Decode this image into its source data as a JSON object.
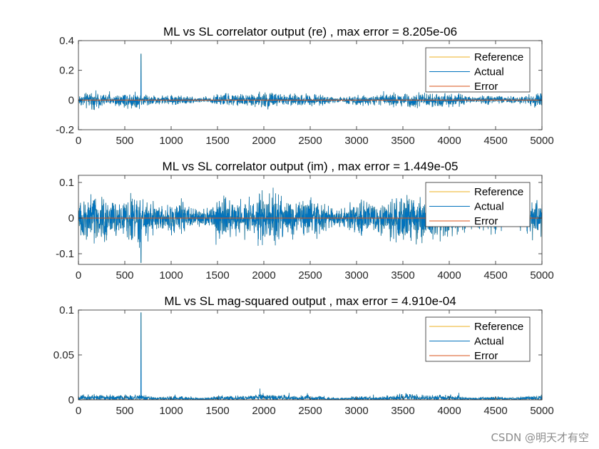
{
  "colors": {
    "reference": "#EDB120",
    "actual": "#0072BD",
    "error": "#D95319",
    "axis": "#262626",
    "background": "#ffffff"
  },
  "watermark": "CSDN @明天才有空",
  "chart_data": [
    {
      "type": "line",
      "title": "ML vs SL correlator output (re) , max error = 8.205e-06",
      "xlabel": "",
      "ylabel": "",
      "xlim": [
        0,
        5000
      ],
      "ylim": [
        -0.2,
        0.4
      ],
      "x_ticks": [
        0,
        500,
        1000,
        1500,
        2000,
        2500,
        3000,
        3500,
        4000,
        4500,
        5000
      ],
      "x_tick_labels": [
        "0",
        "500",
        "1000",
        "1500",
        "2000",
        "2500",
        "3000",
        "3500",
        "4000",
        "4500",
        "5000"
      ],
      "y_ticks": [
        -0.2,
        0,
        0.2,
        0.4
      ],
      "y_tick_labels": [
        "-0.2",
        "0",
        "0.2",
        "0.4"
      ],
      "legend_position": "top-right",
      "series": [
        {
          "name": "Reference",
          "color": "#EDB120",
          "description": "noise sequence, n = 0..5000",
          "noise_amplitude": 0.035,
          "peak": {
            "x": 675,
            "y": 0.31
          }
        },
        {
          "name": "Actual",
          "color": "#0072BD",
          "description": "noise sequence, n = 0..5000",
          "noise_amplitude": 0.035,
          "peak": {
            "x": 675,
            "y": 0.31
          }
        },
        {
          "name": "Error",
          "color": "#D95319",
          "description": "≈ 0 for all samples",
          "value": 0
        }
      ]
    },
    {
      "type": "line",
      "title": "ML vs SL correlator output (im) , max error = 1.449e-05",
      "xlabel": "",
      "ylabel": "",
      "xlim": [
        0,
        5000
      ],
      "ylim": [
        -0.13,
        0.12
      ],
      "x_ticks": [
        0,
        500,
        1000,
        1500,
        2000,
        2500,
        3000,
        3500,
        4000,
        4500,
        5000
      ],
      "x_tick_labels": [
        "0",
        "500",
        "1000",
        "1500",
        "2000",
        "2500",
        "3000",
        "3500",
        "4000",
        "4500",
        "5000"
      ],
      "y_ticks": [
        -0.1,
        0,
        0.1
      ],
      "y_tick_labels": [
        "-0.1",
        "0",
        "0.1"
      ],
      "legend_position": "top-right",
      "series": [
        {
          "name": "Reference",
          "color": "#EDB120",
          "description": "noise sequence, n = 0..5000",
          "noise_amplitude": 0.045,
          "peak": {
            "x": 675,
            "y": -0.125
          }
        },
        {
          "name": "Actual",
          "color": "#0072BD",
          "description": "noise sequence, n = 0..5000",
          "noise_amplitude": 0.045,
          "peak": {
            "x": 675,
            "y": -0.125
          }
        },
        {
          "name": "Error",
          "color": "#D95319",
          "description": "≈ 0 for all samples",
          "value": 0
        }
      ]
    },
    {
      "type": "line",
      "title": "ML vs SL mag-squared output , max error = 4.910e-04",
      "xlabel": "",
      "ylabel": "",
      "xlim": [
        0,
        5000
      ],
      "ylim": [
        0,
        0.1
      ],
      "x_ticks": [
        0,
        500,
        1000,
        1500,
        2000,
        2500,
        3000,
        3500,
        4000,
        4500,
        5000
      ],
      "x_tick_labels": [
        "0",
        "500",
        "1000",
        "1500",
        "2000",
        "2500",
        "3000",
        "3500",
        "4000",
        "4500",
        "5000"
      ],
      "y_ticks": [
        0,
        0.05,
        0.1
      ],
      "y_tick_labels": [
        "0",
        "0.05",
        "0.1"
      ],
      "legend_position": "top-right",
      "series": [
        {
          "name": "Reference",
          "color": "#EDB120",
          "description": "noise sequence, n = 0..5000",
          "noise_amplitude": 0.006,
          "peak": {
            "x": 675,
            "y": 0.097
          }
        },
        {
          "name": "Actual",
          "color": "#0072BD",
          "description": "noise sequence, n = 0..5000",
          "noise_amplitude": 0.006,
          "peak": {
            "x": 675,
            "y": 0.097
          }
        },
        {
          "name": "Error",
          "color": "#D95319",
          "description": "≈ 0 for all samples",
          "value": 0
        }
      ]
    }
  ]
}
